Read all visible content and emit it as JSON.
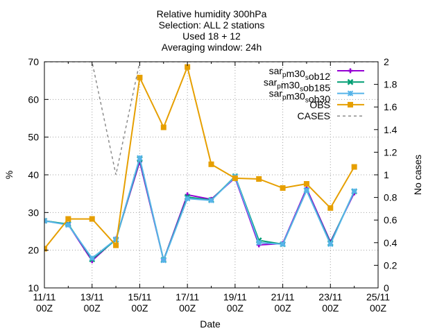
{
  "chart_data": {
    "type": "line",
    "title_lines": [
      "Relative humidity 300hPa",
      "Selection: ALL       2 stations",
      "Used 18 + 12",
      "Averaging window: 24h"
    ],
    "xlabel": "Date",
    "ylabel": "%",
    "y2label": "No cases",
    "x_ticks": [
      {
        "day": 11,
        "label": "11/11",
        "label2": "00Z"
      },
      {
        "day": 13,
        "label": "13/11",
        "label2": "00Z"
      },
      {
        "day": 15,
        "label": "15/11",
        "label2": "00Z"
      },
      {
        "day": 17,
        "label": "17/11",
        "label2": "00Z"
      },
      {
        "day": 19,
        "label": "19/11",
        "label2": "00Z"
      },
      {
        "day": 21,
        "label": "21/11",
        "label2": "00Z"
      },
      {
        "day": 23,
        "label": "23/11",
        "label2": "00Z"
      },
      {
        "day": 25,
        "label": "25/11",
        "label2": "00Z"
      }
    ],
    "xlim": [
      11,
      25
    ],
    "ylim": [
      10,
      70
    ],
    "y_ticks": [
      "10",
      "20",
      "30",
      "40",
      "50",
      "60",
      "70"
    ],
    "y2lim": [
      0,
      2
    ],
    "y2_ticks": [
      "0",
      "0.2",
      "0.4",
      "0.6",
      "0.8",
      "1",
      "1.2",
      "1.4",
      "1.6",
      "1.8",
      "2"
    ],
    "grid": true,
    "legend_position": "top-right",
    "x": [
      11,
      12,
      13,
      14,
      15,
      16,
      17,
      18,
      19,
      20,
      21,
      22,
      23,
      24
    ],
    "series": [
      {
        "name": "sar_pm30_sob12",
        "legend_parts": [
          [
            "sar",
            ""
          ],
          [
            "p",
            "sub"
          ],
          [
            "m30",
            ""
          ],
          [
            "s",
            "sub"
          ],
          [
            "ob12",
            ""
          ]
        ],
        "color": "#9400d3",
        "marker": "plus",
        "values": [
          27.8,
          26.8,
          17.2,
          23.0,
          43.5,
          17.4,
          34.7,
          33.5,
          39.2,
          21.4,
          21.8,
          36.4,
          22.2,
          35.2
        ]
      },
      {
        "name": "sar_pm30_sob185",
        "legend_parts": [
          [
            "sar",
            ""
          ],
          [
            "p",
            "sub"
          ],
          [
            "m30",
            ""
          ],
          [
            "s",
            "sub"
          ],
          [
            "ob185",
            ""
          ]
        ],
        "color": "#009e73",
        "marker": "cross",
        "values": [
          27.8,
          26.9,
          17.6,
          22.8,
          44.2,
          17.4,
          34.1,
          33.3,
          39.6,
          22.6,
          21.6,
          35.9,
          21.9,
          35.6
        ]
      },
      {
        "name": "sar_pm30_sob30",
        "legend_parts": [
          [
            "sar",
            ""
          ],
          [
            "p",
            "sub"
          ],
          [
            "m30",
            ""
          ],
          [
            "s",
            "sub"
          ],
          [
            "ob30",
            ""
          ]
        ],
        "color": "#56b4e9",
        "marker": "star",
        "values": [
          27.8,
          26.7,
          17.9,
          22.9,
          44.5,
          17.3,
          33.7,
          33.2,
          39.5,
          22.0,
          21.6,
          35.9,
          21.6,
          35.7
        ]
      },
      {
        "name": "OBS",
        "legend_parts": [
          [
            "OBS",
            ""
          ]
        ],
        "color": "#e69f00",
        "marker": "square",
        "values": [
          20.4,
          28.3,
          28.3,
          21.3,
          65.8,
          52.6,
          68.6,
          42.8,
          39.1,
          38.9,
          36.5,
          37.6,
          31.2,
          42.1
        ]
      },
      {
        "name": "CASES",
        "legend_parts": [
          [
            "CASES",
            ""
          ]
        ],
        "color": "#8c8c8c",
        "dashed": true,
        "axis": "y2",
        "x": [
          11,
          13,
          14,
          15,
          15.1,
          25
        ],
        "values": [
          2,
          2,
          1,
          2,
          2,
          2
        ]
      }
    ]
  }
}
